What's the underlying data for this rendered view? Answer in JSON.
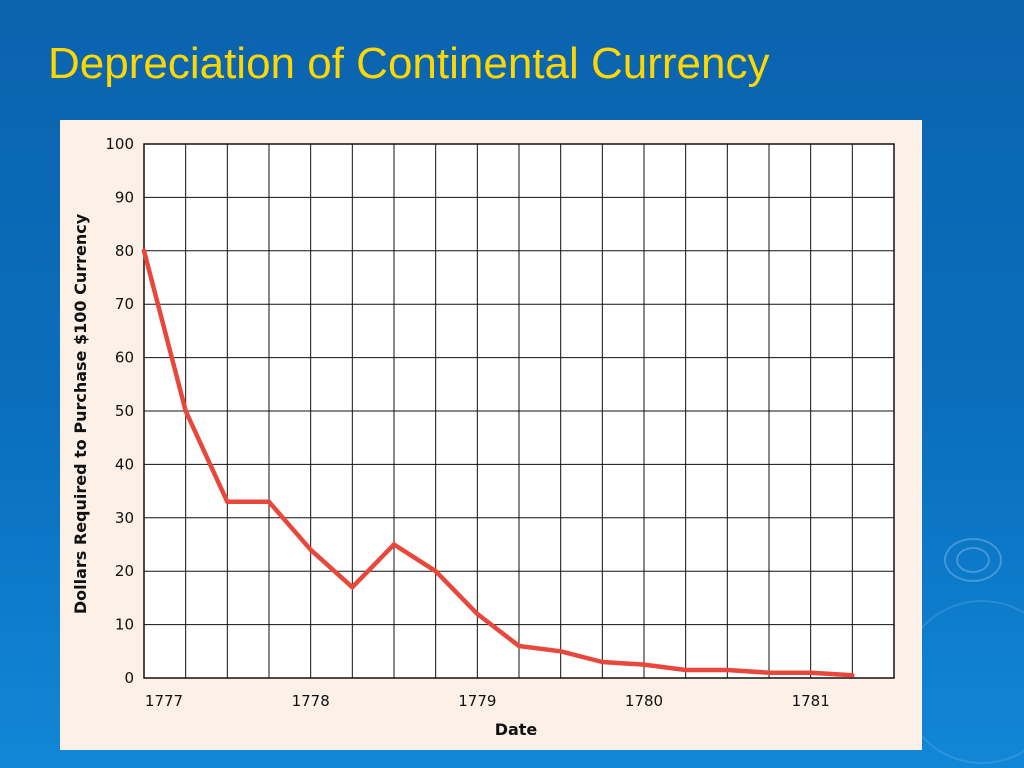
{
  "slide": {
    "title": "Depreciation of Continental Currency",
    "colors": {
      "title": "#ffd700",
      "background": "#0b63ad",
      "panel": "#fdf0e6",
      "line": "#e8473c"
    }
  },
  "chart_data": {
    "type": "line",
    "title": "",
    "xlabel": "Date",
    "ylabel": "Dollars Required to Purchase $100 Currency",
    "x_ticks": [
      "1777",
      "1778",
      "1779",
      "1780",
      "1781"
    ],
    "y_ticks": [
      "100",
      "90",
      "80",
      "70",
      "60",
      "50",
      "40",
      "30",
      "20",
      "10",
      "0"
    ],
    "ylim": [
      0,
      100
    ],
    "grid": true,
    "series": [
      {
        "x": [
          "1777-01",
          "1777-04",
          "1777-07",
          "1777-10",
          "1778-01",
          "1778-04",
          "1778-07",
          "1778-10",
          "1779-01",
          "1779-04",
          "1779-07",
          "1779-10",
          "1780-01",
          "1780-04",
          "1780-07",
          "1780-10",
          "1781-01",
          "1781-04"
        ],
        "values": [
          80,
          50,
          33,
          33,
          24,
          17,
          25,
          20,
          12,
          6,
          5,
          3,
          2.5,
          1.5,
          1.5,
          1,
          1,
          0.5
        ]
      }
    ]
  }
}
